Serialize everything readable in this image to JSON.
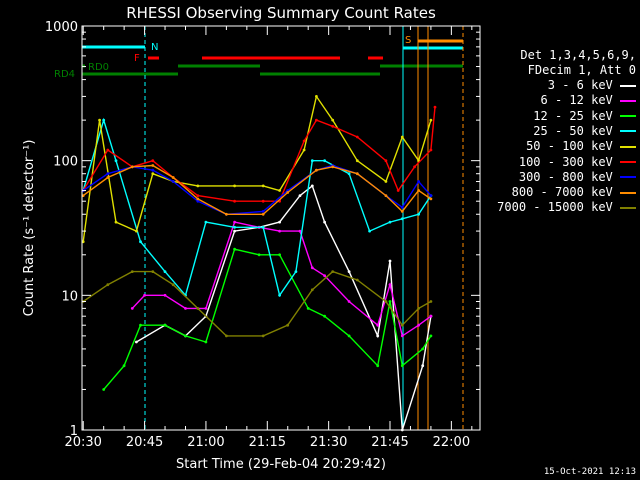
{
  "chart_data": {
    "type": "line",
    "title": "RHESSI Observing Summary Count Rates",
    "xlabel": "Start Time (29-Feb-04 20:29:42)",
    "ylabel": "Count Rate (s⁻¹ detector⁻¹)",
    "y_scale": "log",
    "ylim": [
      1,
      1000
    ],
    "xlim": [
      "20:29:42",
      "22:07"
    ],
    "x_ticks": [
      "20:30",
      "20:45",
      "21:00",
      "21:15",
      "21:30",
      "21:45",
      "22:00"
    ],
    "y_ticks": [
      "1",
      "10",
      "100",
      "1000"
    ],
    "grid": false,
    "legend_position": "right",
    "legend_header": [
      "Det 1,3,4,5,6,9,",
      "FDecim 1, Att 0"
    ],
    "flags": [
      {
        "label": "N",
        "color": "#00ffff"
      },
      {
        "label": "F",
        "color": "#ff0000"
      },
      {
        "label": "S",
        "color": "#ff8c00"
      },
      {
        "label": "RD0",
        "color": "#008000"
      },
      {
        "label": "RD4",
        "color": "#008000"
      }
    ],
    "series": [
      {
        "name": "3 - 6 keV",
        "color": "#ffffff",
        "x": [
          "20:30",
          "20:36",
          "20:43",
          "20:50",
          "20:55",
          "21:00",
          "21:07",
          "21:13",
          "21:18",
          "21:23",
          "21:26",
          "21:29",
          "21:35",
          "21:42",
          "21:45",
          "21:48",
          "21:53",
          "21:55"
        ],
        "values": [
          null,
          null,
          4.5,
          6,
          5,
          7,
          30,
          32,
          35,
          55,
          65,
          35,
          15,
          5,
          18,
          1,
          3,
          7
        ]
      },
      {
        "name": "6 - 12 keV",
        "color": "#ff00ff",
        "x": [
          "20:42",
          "20:45",
          "20:50",
          "20:55",
          "21:00",
          "21:07",
          "21:13",
          "21:18",
          "21:23",
          "21:26",
          "21:29",
          "21:35",
          "21:42",
          "21:45",
          "21:48",
          "21:52",
          "21:55"
        ],
        "values": [
          8,
          10,
          10,
          8,
          8,
          35,
          32,
          30,
          30,
          16,
          14,
          9,
          6,
          12,
          5,
          6,
          7
        ]
      },
      {
        "name": "12 - 25 keV",
        "color": "#00ff00",
        "x": [
          "20:35",
          "20:40",
          "20:44",
          "20:50",
          "20:55",
          "21:00",
          "21:07",
          "21:13",
          "21:18",
          "21:25",
          "21:29",
          "21:35",
          "21:42",
          "21:45",
          "21:48",
          "21:53",
          "21:55"
        ],
        "values": [
          2,
          3,
          6,
          6,
          5,
          4.5,
          22,
          20,
          20,
          8,
          7,
          5,
          3,
          9,
          3,
          4,
          5
        ]
      },
      {
        "name": "25 - 50 keV",
        "color": "#00ffff",
        "x": [
          "20:30",
          "20:35",
          "20:38",
          "20:44",
          "20:50",
          "20:55",
          "21:00",
          "21:07",
          "21:14",
          "21:18",
          "21:22",
          "21:26",
          "21:29",
          "21:35",
          "21:40",
          "21:45",
          "21:48",
          "21:52",
          "21:55"
        ],
        "values": [
          60,
          200,
          100,
          25,
          15,
          10,
          35,
          32,
          32,
          10,
          15,
          100,
          100,
          80,
          30,
          35,
          37,
          40,
          55
        ]
      },
      {
        "name": "50 - 100 keV",
        "color": "#e0e000",
        "x": [
          "20:30",
          "20:34",
          "20:38",
          "20:43",
          "20:47",
          "20:52",
          "20:58",
          "21:07",
          "21:14",
          "21:18",
          "21:24",
          "21:27",
          "21:31",
          "21:37",
          "21:44",
          "21:48",
          "21:52",
          "21:55"
        ],
        "values": [
          25,
          200,
          35,
          30,
          80,
          70,
          65,
          65,
          65,
          60,
          120,
          300,
          200,
          100,
          70,
          150,
          100,
          200
        ]
      },
      {
        "name": "100 - 300 keV",
        "color": "#ff0000",
        "x": [
          "20:30",
          "20:36",
          "20:42",
          "20:47",
          "20:52",
          "20:58",
          "21:07",
          "21:14",
          "21:18",
          "21:24",
          "21:27",
          "21:31",
          "21:37",
          "21:44",
          "21:47",
          "21:51",
          "21:55",
          "21:56"
        ],
        "values": [
          60,
          120,
          90,
          100,
          75,
          55,
          50,
          50,
          50,
          140,
          200,
          180,
          150,
          100,
          60,
          90,
          120,
          250
        ]
      },
      {
        "name": "300 - 800 keV",
        "color": "#0000ff",
        "x": [
          "20:30",
          "20:36",
          "20:42",
          "20:47",
          "20:52",
          "20:58",
          "21:05",
          "21:14",
          "21:20",
          "21:27",
          "21:31",
          "21:37",
          "21:44",
          "21:48",
          "21:52",
          "21:55"
        ],
        "values": [
          60,
          80,
          90,
          85,
          70,
          50,
          40,
          42,
          60,
          85,
          92,
          80,
          55,
          45,
          70,
          55
        ]
      },
      {
        "name": "800 - 7000 keV",
        "color": "#ff8c00",
        "x": [
          "20:30",
          "20:36",
          "20:42",
          "20:47",
          "20:52",
          "20:58",
          "21:05",
          "21:14",
          "21:20",
          "21:27",
          "21:31",
          "21:37",
          "21:44",
          "21:48",
          "21:52",
          "21:55"
        ],
        "values": [
          55,
          75,
          90,
          92,
          75,
          52,
          40,
          40,
          58,
          85,
          90,
          80,
          55,
          42,
          60,
          52
        ]
      },
      {
        "name": "7000 - 15000 keV",
        "color": "#808000",
        "x": [
          "20:30",
          "20:36",
          "20:42",
          "20:47",
          "20:52",
          "20:58",
          "21:05",
          "21:14",
          "21:20",
          "21:26",
          "21:31",
          "21:37",
          "21:44",
          "21:48",
          "21:52",
          "21:55"
        ],
        "values": [
          9,
          12,
          15,
          15,
          12,
          8,
          5,
          5,
          6,
          11,
          15,
          13,
          9,
          6,
          8,
          9
        ]
      }
    ]
  },
  "footer_date": "15-Oct-2021 12:13"
}
